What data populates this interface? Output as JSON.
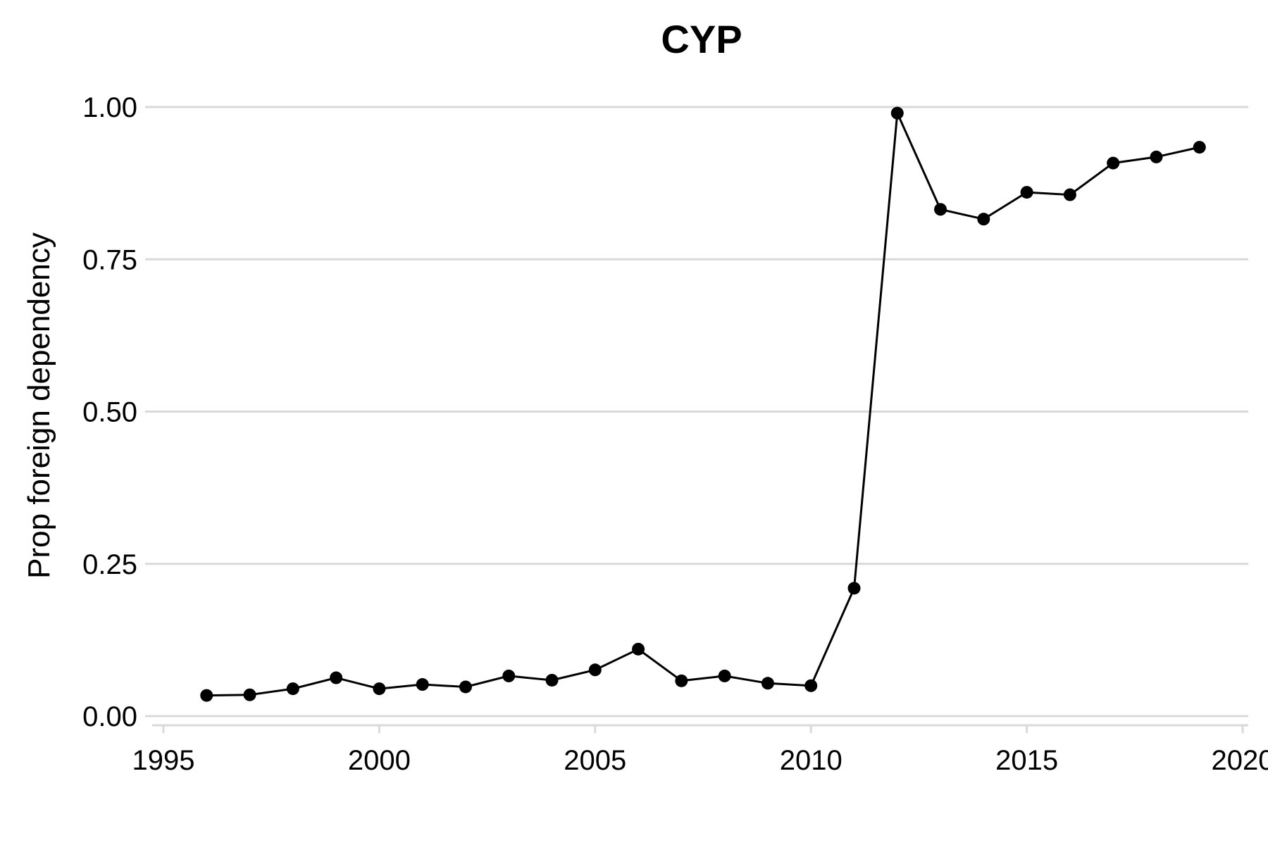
{
  "chart_data": {
    "type": "line",
    "title": "CYP",
    "xlabel": "",
    "ylabel": "Prop foreign dependency",
    "xlim": [
      1995,
      2020
    ],
    "ylim": [
      0,
      1
    ],
    "x_ticks": [
      1995,
      2000,
      2005,
      2010,
      2015,
      2020
    ],
    "y_ticks": [
      0,
      0.25,
      0.5,
      0.75,
      1.0
    ],
    "y_tick_labels": [
      "0.00",
      "0.25",
      "0.50",
      "0.75",
      "1.00"
    ],
    "grid": "horizontal",
    "colors": {
      "series": "#000000",
      "grid": "#d9d9d9"
    },
    "series": [
      {
        "x": [
          1996,
          1997,
          1998,
          1999,
          2000,
          2001,
          2002,
          2003,
          2004,
          2005,
          2006,
          2007,
          2008,
          2009,
          2010,
          2011,
          2012,
          2013,
          2014,
          2015,
          2016,
          2017,
          2018,
          2019
        ],
        "values": [
          0.034,
          0.035,
          0.045,
          0.063,
          0.045,
          0.052,
          0.048,
          0.066,
          0.059,
          0.076,
          0.11,
          0.058,
          0.066,
          0.054,
          0.05,
          0.21,
          0.99,
          0.832,
          0.816,
          0.86,
          0.856,
          0.908,
          0.918,
          0.934
        ]
      }
    ]
  }
}
